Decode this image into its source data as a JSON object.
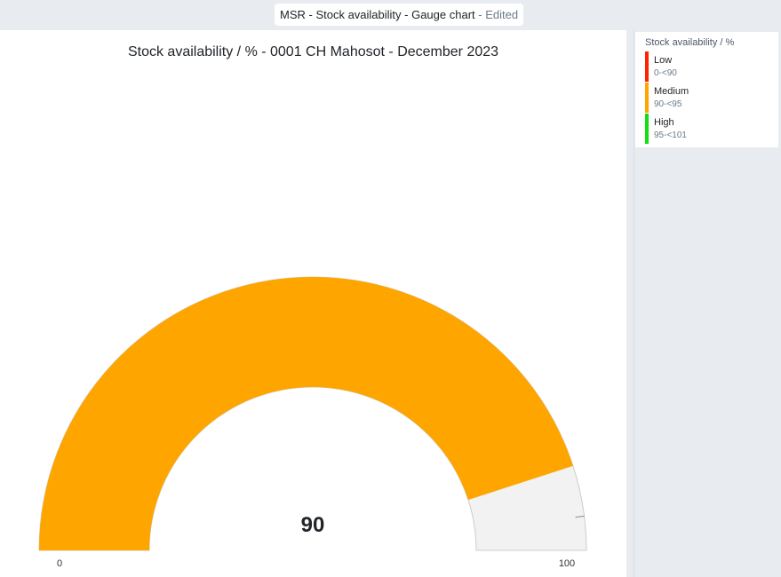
{
  "header": {
    "title": "MSR - Stock availability - Gauge chart",
    "separator": " - ",
    "edited_label": "Edited"
  },
  "chart_data": {
    "type": "gauge",
    "title": "Stock availability / % - 0001 CH Mahosot - December 2023",
    "value": 90,
    "value_label": "90",
    "min": 0,
    "max": 100,
    "min_label": "0",
    "max_label": "100",
    "value_color": "#ffa500",
    "track_color": "#f2f2f2",
    "target_tick": 96
  },
  "legend": {
    "title": "Stock availability / %",
    "items": [
      {
        "name": "Low",
        "range": "0-<90",
        "color": "#ff2200"
      },
      {
        "name": "Medium",
        "range": "90-<95",
        "color": "#ffa500"
      },
      {
        "name": "High",
        "range": "95-<101",
        "color": "#11e011"
      }
    ]
  }
}
